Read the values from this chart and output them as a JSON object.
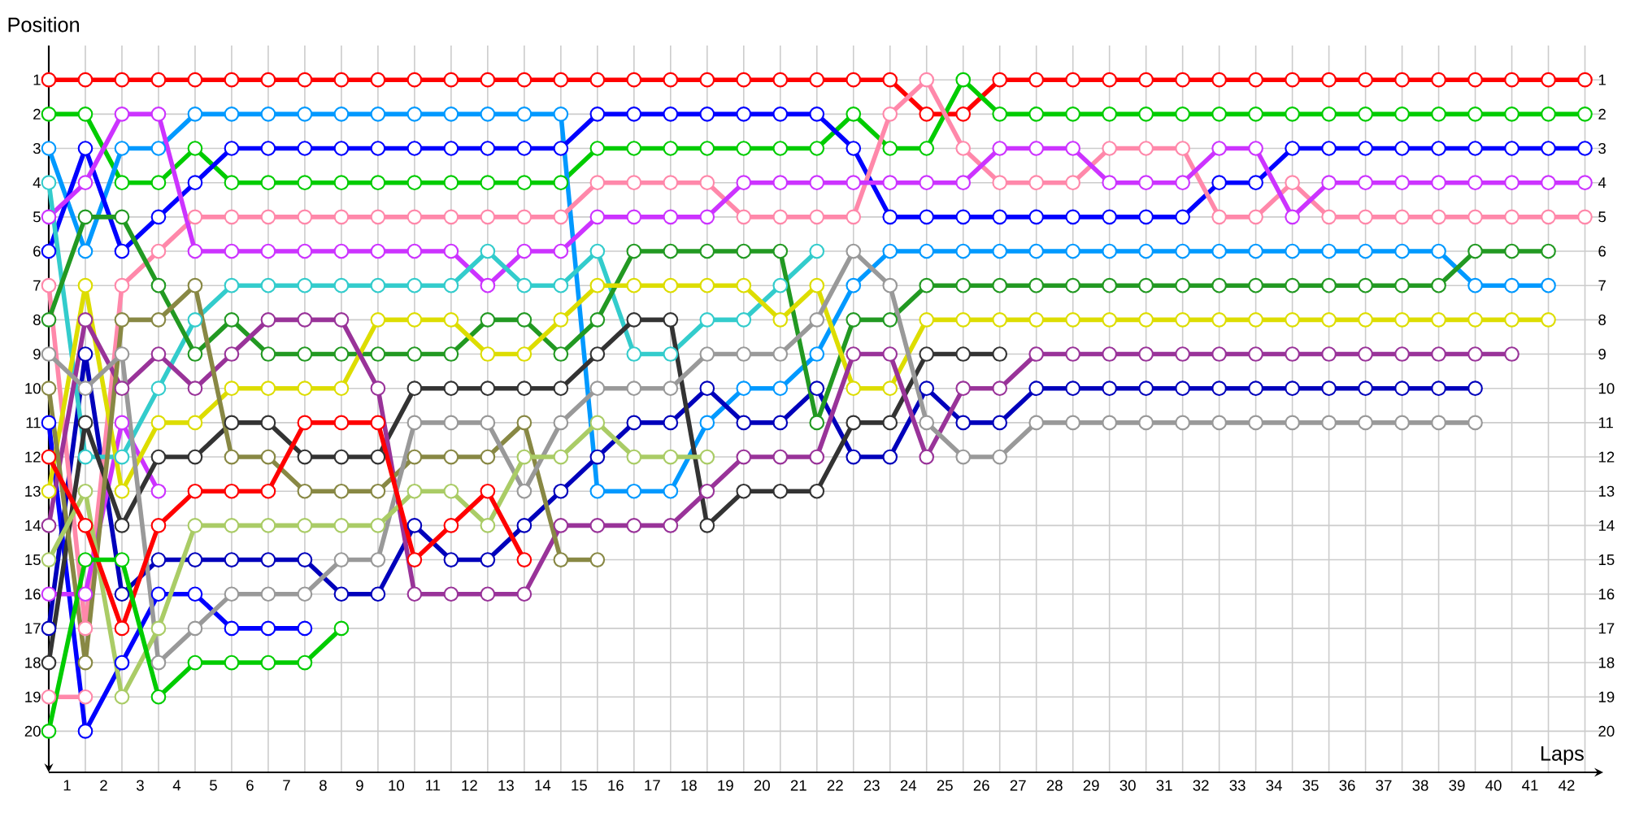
{
  "chart_data": {
    "type": "line",
    "xlabel": "Laps",
    "ylabel": "Position",
    "x": [
      0,
      1,
      2,
      3,
      4,
      5,
      6,
      7,
      8,
      9,
      10,
      11,
      12,
      13,
      14,
      15,
      16,
      17,
      18,
      19,
      20,
      21,
      22,
      23,
      24,
      25,
      26,
      27,
      28,
      29,
      30,
      31,
      32,
      33,
      34,
      35,
      36,
      37,
      38,
      39,
      40,
      41,
      42
    ],
    "xlim": [
      0,
      42.5
    ],
    "ylim": [
      21.2,
      0
    ],
    "y2lim": [
      21.2,
      0
    ],
    "xticks": [
      {
        "value": 0.5,
        "label": "1"
      },
      {
        "value": 1.5,
        "label": "2"
      },
      {
        "value": 2.5,
        "label": "3"
      },
      {
        "value": 3.5,
        "label": "4"
      },
      {
        "value": 4.5,
        "label": "5"
      },
      {
        "value": 5.5,
        "label": "6"
      },
      {
        "value": 6.5,
        "label": "7"
      },
      {
        "value": 7.5,
        "label": "8"
      },
      {
        "value": 8.5,
        "label": "9"
      },
      {
        "value": 9.5,
        "label": "10"
      },
      {
        "value": 10.5,
        "label": "11"
      },
      {
        "value": 11.5,
        "label": "12"
      },
      {
        "value": 12.5,
        "label": "13"
      },
      {
        "value": 13.5,
        "label": "14"
      },
      {
        "value": 14.5,
        "label": "15"
      },
      {
        "value": 15.5,
        "label": "16"
      },
      {
        "value": 16.5,
        "label": "17"
      },
      {
        "value": 17.5,
        "label": "18"
      },
      {
        "value": 18.5,
        "label": "19"
      },
      {
        "value": 19.5,
        "label": "20"
      },
      {
        "value": 20.5,
        "label": "21"
      },
      {
        "value": 21.5,
        "label": "22"
      },
      {
        "value": 22.5,
        "label": "23"
      },
      {
        "value": 23.5,
        "label": "24"
      },
      {
        "value": 24.5,
        "label": "25"
      },
      {
        "value": 25.5,
        "label": "26"
      },
      {
        "value": 26.5,
        "label": "27"
      },
      {
        "value": 27.5,
        "label": "28"
      },
      {
        "value": 28.5,
        "label": "29"
      },
      {
        "value": 29.5,
        "label": "30"
      },
      {
        "value": 30.5,
        "label": "31"
      },
      {
        "value": 31.5,
        "label": "32"
      },
      {
        "value": 32.5,
        "label": "33"
      },
      {
        "value": 33.5,
        "label": "34"
      },
      {
        "value": 34.5,
        "label": "35"
      },
      {
        "value": 35.5,
        "label": "36"
      },
      {
        "value": 36.5,
        "label": "37"
      },
      {
        "value": 37.5,
        "label": "38"
      },
      {
        "value": 38.5,
        "label": "39"
      },
      {
        "value": 39.5,
        "label": "40"
      },
      {
        "value": 40.5,
        "label": "41"
      },
      {
        "value": 41.5,
        "label": "42"
      },
      {
        "value": 1,
        "label": null
      },
      {
        "value": 2,
        "label": null
      },
      {
        "value": 3,
        "label": null
      },
      {
        "value": 4,
        "label": null
      },
      {
        "value": 5,
        "label": null
      },
      {
        "value": 6,
        "label": null
      },
      {
        "value": 7,
        "label": null
      },
      {
        "value": 8,
        "label": null
      },
      {
        "value": 9,
        "label": null
      },
      {
        "value": 10,
        "label": null
      },
      {
        "value": 11,
        "label": null
      },
      {
        "value": 12,
        "label": null
      },
      {
        "value": 13,
        "label": null
      },
      {
        "value": 14,
        "label": null
      },
      {
        "value": 15,
        "label": null
      },
      {
        "value": 16,
        "label": null
      },
      {
        "value": 17,
        "label": null
      },
      {
        "value": 18,
        "label": null
      },
      {
        "value": 19,
        "label": null
      },
      {
        "value": 20,
        "label": null
      },
      {
        "value": 21,
        "label": null
      },
      {
        "value": 22,
        "label": null
      },
      {
        "value": 23,
        "label": null
      },
      {
        "value": 24,
        "label": null
      },
      {
        "value": 25,
        "label": null
      },
      {
        "value": 26,
        "label": null
      },
      {
        "value": 27,
        "label": null
      },
      {
        "value": 28,
        "label": null
      },
      {
        "value": 29,
        "label": null
      },
      {
        "value": 30,
        "label": null
      },
      {
        "value": 31,
        "label": null
      },
      {
        "value": 32,
        "label": null
      },
      {
        "value": 33,
        "label": null
      },
      {
        "value": 34,
        "label": null
      },
      {
        "value": 35,
        "label": null
      },
      {
        "value": 36,
        "label": null
      },
      {
        "value": 37,
        "label": null
      },
      {
        "value": 38,
        "label": null
      },
      {
        "value": 39,
        "label": null
      },
      {
        "value": 40,
        "label": null
      },
      {
        "value": 41,
        "label": null
      },
      {
        "value": 42,
        "label": null
      }
    ],
    "yticks": [
      1,
      2,
      3,
      4,
      5,
      6,
      7,
      8,
      9,
      10,
      11,
      12,
      13,
      14,
      15,
      16,
      17,
      18,
      19,
      20
    ],
    "y2ticks": [
      1,
      2,
      3,
      4,
      5,
      6,
      7,
      8,
      9,
      10,
      11,
      12,
      13,
      14,
      15,
      16,
      17,
      18,
      19,
      20
    ],
    "grid": true,
    "marker": "circle",
    "line_style": "solid",
    "series": [
      {
        "color": "#ff0000",
        "values": [
          1,
          1,
          1,
          1,
          1,
          1,
          1,
          1,
          1,
          1,
          1,
          1,
          1,
          1,
          1,
          1,
          1,
          1,
          1,
          1,
          1,
          1,
          1,
          1,
          2,
          2,
          1,
          1,
          1,
          1,
          1,
          1,
          1,
          1,
          1,
          1,
          1,
          1,
          1,
          1,
          1,
          1,
          1
        ]
      },
      {
        "color": "#00cc00",
        "values": [
          2,
          2,
          4,
          4,
          3,
          4,
          4,
          4,
          4,
          4,
          4,
          4,
          4,
          4,
          4,
          3,
          3,
          3,
          3,
          3,
          3,
          3,
          2,
          3,
          3,
          1,
          2,
          2,
          2,
          2,
          2,
          2,
          2,
          2,
          2,
          2,
          2,
          2,
          2,
          2,
          2,
          2,
          2
        ]
      },
      {
        "color": "#0099ff",
        "values": [
          3,
          6,
          3,
          3,
          2,
          2,
          2,
          2,
          2,
          2,
          2,
          2,
          2,
          2,
          2,
          13,
          13,
          13,
          11,
          10,
          10,
          9,
          7,
          6,
          6,
          6,
          6,
          6,
          6,
          6,
          6,
          6,
          6,
          6,
          6,
          6,
          6,
          6,
          6,
          7,
          7,
          7,
          null
        ]
      },
      {
        "color": "#0000ff",
        "values": [
          6,
          3,
          6,
          5,
          4,
          3,
          3,
          3,
          3,
          3,
          3,
          3,
          3,
          3,
          3,
          2,
          2,
          2,
          2,
          2,
          2,
          2,
          3,
          5,
          5,
          5,
          5,
          5,
          5,
          5,
          5,
          5,
          4,
          4,
          3,
          3,
          3,
          3,
          3,
          3,
          3,
          3,
          3
        ]
      },
      {
        "color": "#0000ff",
        "values": [
          11,
          20,
          18,
          16,
          16,
          17,
          17,
          17,
          null,
          null,
          null,
          null,
          null,
          null,
          null,
          null,
          null,
          null,
          null,
          null,
          null,
          null,
          null,
          null,
          null,
          null,
          null,
          null,
          null,
          null,
          null,
          null,
          null,
          null,
          null,
          null,
          null,
          null,
          null,
          null,
          null,
          null,
          null
        ]
      },
      {
        "color": "#0000bb",
        "values": [
          17,
          9,
          16,
          15,
          15,
          15,
          15,
          15,
          16,
          16,
          14,
          15,
          15,
          14,
          13,
          12,
          11,
          11,
          10,
          11,
          11,
          10,
          12,
          12,
          10,
          11,
          11,
          10,
          10,
          10,
          10,
          10,
          10,
          10,
          10,
          10,
          10,
          10,
          10,
          10,
          null,
          null,
          null
        ]
      },
      {
        "color": "#ff88aa",
        "values": [
          7,
          17,
          7,
          6,
          5,
          5,
          5,
          5,
          5,
          5,
          5,
          5,
          5,
          5,
          5,
          4,
          4,
          4,
          4,
          5,
          5,
          5,
          5,
          2,
          1,
          3,
          4,
          4,
          4,
          3,
          3,
          3,
          5,
          5,
          4,
          5,
          5,
          5,
          5,
          5,
          5,
          5,
          5
        ]
      },
      {
        "color": "#ff88aa",
        "values": [
          19,
          19,
          null,
          null,
          null,
          null,
          null,
          null,
          null,
          null,
          null,
          null,
          null,
          null,
          null,
          null,
          null,
          null,
          null,
          null,
          null,
          null,
          null,
          null,
          null,
          null,
          null,
          null,
          null,
          null,
          null,
          null,
          null,
          null,
          null,
          null,
          null,
          null,
          null,
          null,
          null,
          null,
          null
        ]
      },
      {
        "color": "#cc33ff",
        "values": [
          5,
          4,
          2,
          2,
          6,
          6,
          6,
          6,
          6,
          6,
          6,
          6,
          7,
          6,
          6,
          5,
          5,
          5,
          5,
          4,
          4,
          4,
          4,
          4,
          4,
          4,
          3,
          3,
          3,
          4,
          4,
          4,
          3,
          3,
          5,
          4,
          4,
          4,
          4,
          4,
          4,
          4,
          4
        ]
      },
      {
        "color": "#cc33ff",
        "values": [
          16,
          16,
          11,
          13,
          null,
          null,
          null,
          null,
          null,
          null,
          null,
          null,
          null,
          null,
          null,
          null,
          null,
          null,
          null,
          null,
          null,
          null,
          null,
          null,
          null,
          null,
          null,
          null,
          null,
          null,
          null,
          null,
          null,
          null,
          null,
          null,
          null,
          null,
          null,
          null,
          null,
          null,
          null
        ]
      },
      {
        "color": "#33cccc",
        "values": [
          4,
          12,
          12,
          10,
          8,
          7,
          7,
          7,
          7,
          7,
          7,
          7,
          6,
          7,
          7,
          6,
          9,
          9,
          8,
          8,
          7,
          6,
          null,
          null,
          null,
          null,
          null,
          null,
          null,
          null,
          null,
          null,
          null,
          null,
          null,
          null,
          null,
          null,
          null,
          null,
          null,
          null,
          null
        ]
      },
      {
        "color": "#229922",
        "values": [
          8,
          5,
          5,
          7,
          9,
          8,
          9,
          9,
          9,
          9,
          9,
          9,
          8,
          8,
          9,
          8,
          6,
          6,
          6,
          6,
          6,
          11,
          8,
          8,
          7,
          7,
          7,
          7,
          7,
          7,
          7,
          7,
          7,
          7,
          7,
          7,
          7,
          7,
          7,
          6,
          6,
          6,
          null
        ]
      },
      {
        "color": "#dddd00",
        "values": [
          13,
          7,
          13,
          11,
          11,
          10,
          10,
          10,
          10,
          8,
          8,
          8,
          9,
          9,
          8,
          7,
          7,
          7,
          7,
          7,
          8,
          7,
          10,
          10,
          8,
          8,
          8,
          8,
          8,
          8,
          8,
          8,
          8,
          8,
          8,
          8,
          8,
          8,
          8,
          8,
          8,
          8,
          null
        ]
      },
      {
        "color": "#333333",
        "values": [
          18,
          11,
          14,
          12,
          12,
          11,
          11,
          12,
          12,
          12,
          10,
          10,
          10,
          10,
          10,
          9,
          8,
          8,
          14,
          13,
          13,
          13,
          11,
          11,
          9,
          9,
          9,
          null,
          null,
          null,
          null,
          null,
          null,
          null,
          null,
          null,
          null,
          null,
          null,
          null,
          null,
          null,
          null
        ]
      },
      {
        "color": "#993399",
        "values": [
          14,
          8,
          10,
          9,
          10,
          9,
          8,
          8,
          8,
          10,
          16,
          16,
          16,
          16,
          14,
          14,
          14,
          14,
          13,
          12,
          12,
          12,
          9,
          9,
          12,
          10,
          10,
          9,
          9,
          9,
          9,
          9,
          9,
          9,
          9,
          9,
          9,
          9,
          9,
          9,
          9,
          null,
          null
        ]
      },
      {
        "color": "#888844",
        "values": [
          10,
          18,
          8,
          8,
          7,
          12,
          12,
          13,
          13,
          13,
          12,
          12,
          12,
          11,
          15,
          15,
          null,
          null,
          null,
          null,
          null,
          null,
          null,
          null,
          null,
          null,
          null,
          null,
          null,
          null,
          null,
          null,
          null,
          null,
          null,
          null,
          null,
          null,
          null,
          null,
          null,
          null,
          null
        ]
      },
      {
        "color": "#999999",
        "values": [
          9,
          10,
          9,
          18,
          17,
          16,
          16,
          16,
          15,
          15,
          11,
          11,
          11,
          13,
          11,
          10,
          10,
          10,
          9,
          9,
          9,
          8,
          6,
          7,
          11,
          12,
          12,
          11,
          11,
          11,
          11,
          11,
          11,
          11,
          11,
          11,
          11,
          11,
          11,
          11,
          null,
          null,
          null
        ]
      },
      {
        "color": "#aacc66",
        "values": [
          15,
          13,
          19,
          17,
          14,
          14,
          14,
          14,
          14,
          14,
          13,
          13,
          14,
          12,
          12,
          11,
          12,
          12,
          12,
          null,
          null,
          null,
          null,
          null,
          null,
          null,
          null,
          null,
          null,
          null,
          null,
          null,
          null,
          null,
          null,
          null,
          null,
          null,
          null,
          null,
          null,
          null,
          null
        ]
      },
      {
        "color": "#ff0000",
        "values": [
          12,
          14,
          17,
          14,
          13,
          13,
          13,
          11,
          11,
          11,
          15,
          14,
          13,
          15,
          null,
          null,
          null,
          null,
          null,
          null,
          null,
          null,
          null,
          null,
          null,
          null,
          null,
          null,
          null,
          null,
          null,
          null,
          null,
          null,
          null,
          null,
          null,
          null,
          null,
          null,
          null,
          null,
          null
        ]
      },
      {
        "color": "#00cc00",
        "values": [
          20,
          15,
          15,
          19,
          18,
          18,
          18,
          18,
          17,
          null,
          null,
          null,
          null,
          null,
          null,
          null,
          null,
          null,
          null,
          null,
          null,
          null,
          null,
          null,
          null,
          null,
          null,
          null,
          null,
          null,
          null,
          null,
          null,
          null,
          null,
          null,
          null,
          null,
          null,
          null,
          null,
          null,
          null
        ]
      }
    ]
  }
}
